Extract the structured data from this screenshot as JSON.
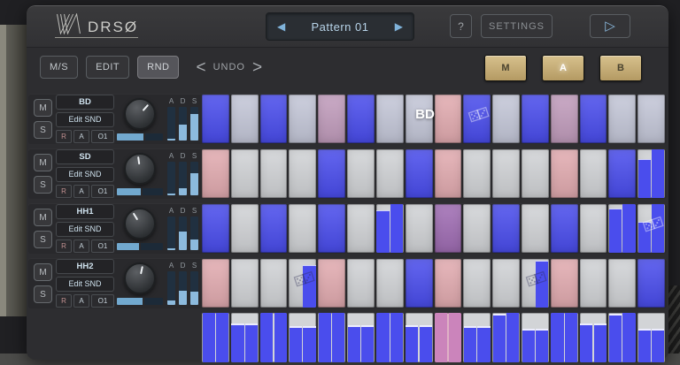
{
  "header": {
    "logo_text": "DRSØ",
    "pattern_label": "Pattern 01",
    "help_label": "?",
    "settings_label": "SETTINGS"
  },
  "icons": {
    "prev": "◀",
    "next": "▶",
    "play": "▷",
    "undo_left": "<",
    "undo_right": ">",
    "dice": "⚄⚂"
  },
  "toolbar": {
    "ms_label": "M/S",
    "edit_label": "EDIT",
    "rnd_label": "RND",
    "undo_label": "UNDO",
    "bank_m_label": "M",
    "bank_a_label": "A",
    "bank_b_label": "B",
    "active_bank": "A"
  },
  "track_controls": {
    "mute_label": "M",
    "solo_label": "S"
  },
  "tracks": [
    {
      "name": "BD",
      "edit_label": "Edit SND",
      "buttons": [
        "R",
        "A",
        "O1"
      ],
      "knob_angle": 42,
      "meter_pct": 58,
      "env": {
        "labels": [
          "A",
          "D",
          "S"
        ],
        "values_pct": [
          6,
          48,
          80
        ]
      }
    },
    {
      "name": "SD",
      "edit_label": "Edit SND",
      "buttons": [
        "R",
        "A",
        "O1"
      ],
      "knob_angle": -8,
      "meter_pct": 52,
      "env": {
        "labels": [
          "A",
          "D",
          "S"
        ],
        "values_pct": [
          6,
          20,
          66
        ]
      }
    },
    {
      "name": "HH1",
      "edit_label": "Edit SND",
      "buttons": [
        "R",
        "A",
        "O1"
      ],
      "knob_angle": -32,
      "meter_pct": 48,
      "env": {
        "labels": [
          "A",
          "D",
          "S"
        ],
        "values_pct": [
          6,
          55,
          32
        ]
      }
    },
    {
      "name": "HH2",
      "edit_label": "Edit SND",
      "buttons": [
        "R",
        "A",
        "O1"
      ],
      "knob_angle": 12,
      "meter_pct": 55,
      "env": {
        "labels": [
          "A",
          "D",
          "S"
        ],
        "values_pct": [
          14,
          42,
          40
        ]
      }
    }
  ],
  "colors": {
    "blue": "#4a4ded",
    "light": "#d2d4d7",
    "lav": "#c5c8d9",
    "pink": "#e3acb1",
    "mauve": "#c29dbd",
    "purple": "#a06db4",
    "vel_bg": "#d2d4d7",
    "vel_bar": "#4a4ded",
    "vel_bg_pink": "#dfb0c5",
    "vel_bar_pink": "#cb84bb",
    "accent_blue": "#8fc1e3",
    "tan": "#c9b177"
  },
  "grid": {
    "drag_label": "BD",
    "rows": [
      [
        {
          "c": "blue"
        },
        {
          "c": "lav"
        },
        {
          "c": "blue"
        },
        {
          "c": "lav"
        },
        {
          "c": "mauve"
        },
        {
          "c": "blue"
        },
        {
          "c": "lav"
        },
        {
          "c": "lav"
        },
        {
          "c": "pink"
        },
        {
          "c": "blue",
          "glyph": "light"
        },
        {
          "c": "lav"
        },
        {
          "c": "blue"
        },
        {
          "c": "mauve"
        },
        {
          "c": "blue"
        },
        {
          "c": "lav"
        },
        {
          "c": "lav"
        }
      ],
      [
        {
          "c": "pink"
        },
        {
          "c": "light"
        },
        {
          "c": "light"
        },
        {
          "c": "light"
        },
        {
          "c": "blue"
        },
        {
          "c": "light"
        },
        {
          "c": "light"
        },
        {
          "c": "blue"
        },
        {
          "c": "pink"
        },
        {
          "c": "light"
        },
        {
          "c": "light"
        },
        {
          "c": "light"
        },
        {
          "c": "pink"
        },
        {
          "c": "light"
        },
        {
          "c": "blue"
        },
        {
          "c": "light",
          "bars": [
            78,
            100
          ]
        }
      ],
      [
        {
          "c": "blue"
        },
        {
          "c": "light"
        },
        {
          "c": "blue"
        },
        {
          "c": "light"
        },
        {
          "c": "blue"
        },
        {
          "c": "light"
        },
        {
          "c": "light",
          "bars": [
            85,
            100
          ]
        },
        {
          "c": "light"
        },
        {
          "c": "purple"
        },
        {
          "c": "light"
        },
        {
          "c": "blue"
        },
        {
          "c": "light"
        },
        {
          "c": "blue"
        },
        {
          "c": "light"
        },
        {
          "c": "light",
          "bars": [
            90,
            100
          ]
        },
        {
          "c": "light",
          "bars": [
            62,
            100
          ],
          "glyph": "light"
        }
      ],
      [
        {
          "c": "pink"
        },
        {
          "c": "light"
        },
        {
          "c": "light"
        },
        {
          "c": "light",
          "bars": [
            0,
            85
          ],
          "glyph": "dark"
        },
        {
          "c": "pink"
        },
        {
          "c": "light"
        },
        {
          "c": "light"
        },
        {
          "c": "blue"
        },
        {
          "c": "pink"
        },
        {
          "c": "light"
        },
        {
          "c": "light"
        },
        {
          "c": "light",
          "bars": [
            0,
            95
          ],
          "glyph": "dark"
        },
        {
          "c": "pink"
        },
        {
          "c": "light"
        },
        {
          "c": "light"
        },
        {
          "c": "blue"
        }
      ]
    ],
    "velocity": [
      {
        "bars": [
          100,
          100
        ]
      },
      {
        "bars": [
          75,
          75
        ]
      },
      {
        "bars": [
          100,
          100
        ]
      },
      {
        "bars": [
          70,
          70
        ]
      },
      {
        "bars": [
          100,
          100
        ]
      },
      {
        "bars": [
          72,
          72
        ]
      },
      {
        "bars": [
          100,
          100
        ]
      },
      {
        "bars": [
          72,
          72
        ]
      },
      {
        "bars": [
          100,
          100
        ],
        "pink": true
      },
      {
        "bars": [
          70,
          70
        ]
      },
      {
        "bars": [
          95,
          100
        ]
      },
      {
        "bars": [
          65,
          65
        ]
      },
      {
        "bars": [
          100,
          100
        ]
      },
      {
        "bars": [
          75,
          75
        ]
      },
      {
        "bars": [
          95,
          100
        ]
      },
      {
        "bars": [
          65,
          65
        ]
      }
    ]
  }
}
